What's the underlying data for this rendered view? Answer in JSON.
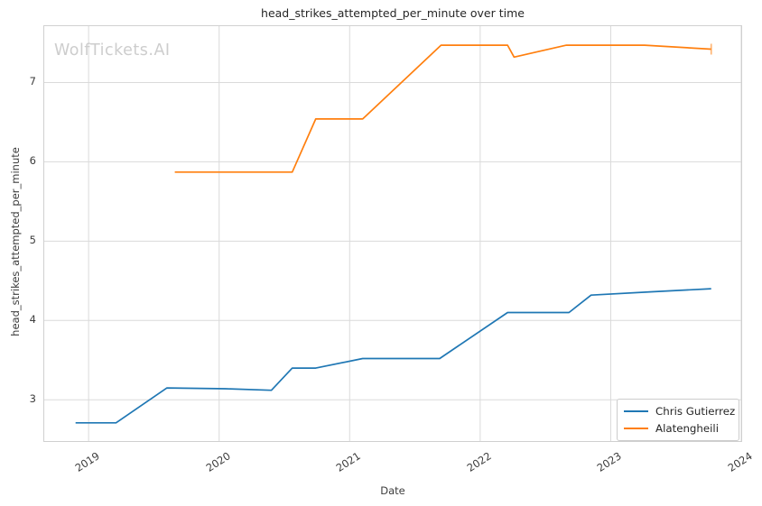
{
  "watermark": "WolfTickets.AI",
  "chart_data": {
    "type": "line",
    "title": "head_strikes_attempted_per_minute over time",
    "xlabel": "Date",
    "ylabel": "head_strikes_attempted_per_minute",
    "x_tick_labels": [
      "2019",
      "2020",
      "2021",
      "2022",
      "2023",
      "2024"
    ],
    "x_tick_values": [
      2019,
      2020,
      2021,
      2022,
      2023,
      2024
    ],
    "y_tick_labels": [
      "3",
      "4",
      "5",
      "6",
      "7"
    ],
    "y_tick_values": [
      3,
      4,
      5,
      6,
      7
    ],
    "xlim": [
      2018.66,
      2024.0
    ],
    "ylim": [
      2.48,
      7.71
    ],
    "grid": true,
    "legend_position": "lower-right",
    "colors": {
      "grid": "#dadada",
      "spine": "#d0d0d0",
      "blue_series": "#1f77b4",
      "orange_series": "#ff7f0e"
    },
    "series": [
      {
        "name": "Chris Gutierrez",
        "color": "#1f77b4",
        "points": [
          [
            2018.9,
            2.71
          ],
          [
            2019.21,
            2.71
          ],
          [
            2019.6,
            3.15
          ],
          [
            2020.05,
            3.14
          ],
          [
            2020.4,
            3.12
          ],
          [
            2020.56,
            3.4
          ],
          [
            2020.74,
            3.4
          ],
          [
            2021.1,
            3.52
          ],
          [
            2021.69,
            3.52
          ],
          [
            2022.21,
            4.1
          ],
          [
            2022.68,
            4.1
          ],
          [
            2022.85,
            4.32
          ],
          [
            2023.3,
            4.36
          ],
          [
            2023.77,
            4.4
          ]
        ]
      },
      {
        "name": "Alatengheili",
        "color": "#ff7f0e",
        "end_marker": "vline",
        "points": [
          [
            2019.66,
            5.87
          ],
          [
            2020.56,
            5.87
          ],
          [
            2020.74,
            6.54
          ],
          [
            2021.1,
            6.54
          ],
          [
            2021.7,
            7.47
          ],
          [
            2022.21,
            7.47
          ],
          [
            2022.26,
            7.32
          ],
          [
            2022.66,
            7.47
          ],
          [
            2023.26,
            7.47
          ],
          [
            2023.77,
            7.42
          ]
        ]
      }
    ]
  }
}
